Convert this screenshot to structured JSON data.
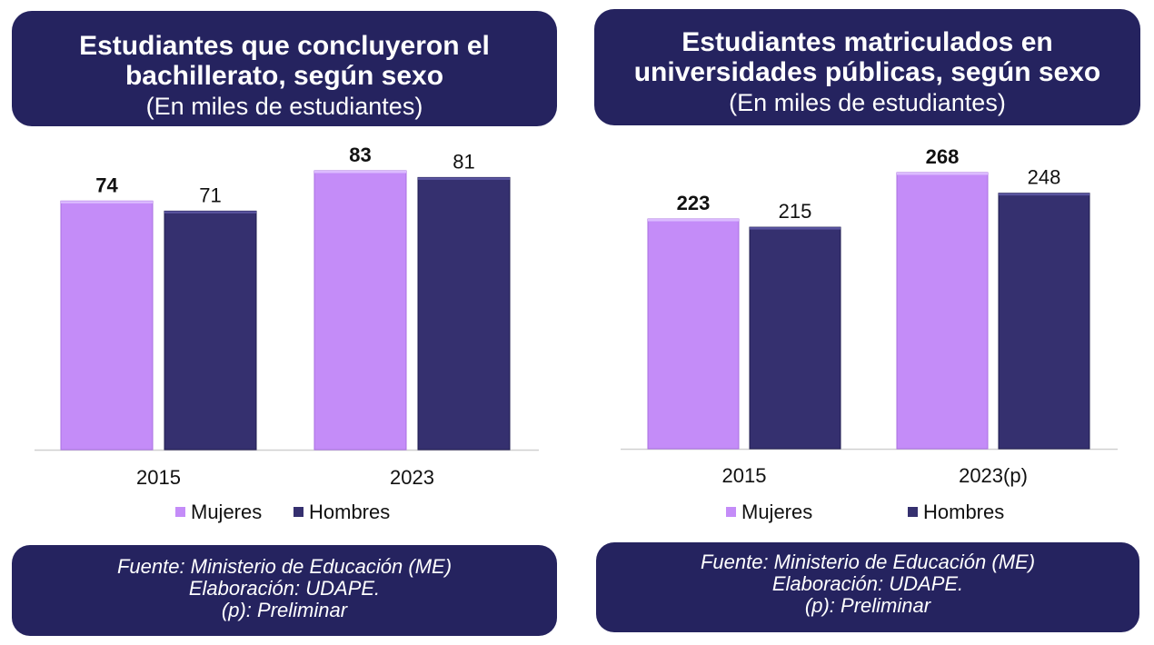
{
  "colors": {
    "mujeres": "#c48cf8",
    "hombres": "#35306f",
    "header_bg": "#25235f"
  },
  "left": {
    "title_line1": "Estudiantes que concluyeron el",
    "title_line2": "bachillerato, según sexo",
    "subtitle": "(En miles de estudiantes)",
    "footer": [
      "Fuente: Ministerio de Educación (ME)",
      "Elaboración: UDAPE.",
      "(p): Preliminar"
    ]
  },
  "right": {
    "title_line1": "Estudiantes matriculados en",
    "title_line2": "universidades públicas, según sexo",
    "subtitle": "(En miles de estudiantes)",
    "footer": [
      "Fuente: Ministerio de Educación (ME)",
      "Elaboración: UDAPE.",
      "(p): Preliminar"
    ]
  },
  "chart_data": [
    {
      "type": "bar",
      "title": "Estudiantes que concluyeron el bachillerato, según sexo",
      "subtitle": "(En miles de estudiantes)",
      "categories": [
        "2015",
        "2023"
      ],
      "series": [
        {
          "name": "Mujeres",
          "values": [
            74,
            83
          ]
        },
        {
          "name": "Hombres",
          "values": [
            71,
            81
          ]
        }
      ],
      "ylim": [
        0,
        83
      ],
      "grid": false,
      "legend": "bottom"
    },
    {
      "type": "bar",
      "title": "Estudiantes matriculados en universidades públicas, según sexo",
      "subtitle": "(En miles de estudiantes)",
      "categories": [
        "2015",
        "2023(p)"
      ],
      "series": [
        {
          "name": "Mujeres",
          "values": [
            223,
            268
          ]
        },
        {
          "name": "Hombres",
          "values": [
            215,
            248
          ]
        }
      ],
      "ylim": [
        0,
        268
      ],
      "grid": false,
      "legend": "bottom"
    }
  ]
}
